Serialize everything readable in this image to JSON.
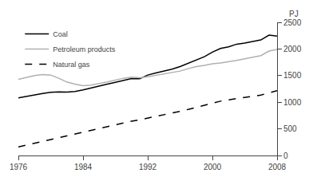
{
  "chart_data": {
    "type": "line",
    "ylabel": "PJ",
    "x": [
      1976,
      1977,
      1978,
      1979,
      1980,
      1981,
      1982,
      1983,
      1984,
      1985,
      1986,
      1987,
      1988,
      1989,
      1990,
      1991,
      1992,
      1993,
      1994,
      1995,
      1996,
      1997,
      1998,
      1999,
      2000,
      2001,
      2002,
      2003,
      2004,
      2005,
      2006,
      2007,
      2008
    ],
    "series": [
      {
        "name": "Coal",
        "color": "#000000",
        "line_style": "solid",
        "values": [
          1080,
          1110,
          1140,
          1165,
          1185,
          1195,
          1190,
          1200,
          1230,
          1270,
          1300,
          1340,
          1375,
          1415,
          1445,
          1440,
          1510,
          1550,
          1580,
          1620,
          1670,
          1730,
          1800,
          1855,
          1940,
          2010,
          2040,
          2090,
          2110,
          2145,
          2170,
          2260,
          2240
        ]
      },
      {
        "name": "Petroleum products",
        "color": "#b0b0b0",
        "line_style": "solid",
        "values": [
          1430,
          1470,
          1500,
          1520,
          1510,
          1450,
          1380,
          1340,
          1310,
          1320,
          1345,
          1380,
          1415,
          1450,
          1470,
          1460,
          1480,
          1505,
          1530,
          1555,
          1585,
          1630,
          1670,
          1690,
          1720,
          1735,
          1755,
          1785,
          1815,
          1845,
          1875,
          1960,
          1990
        ]
      },
      {
        "name": "Natural gas",
        "color": "#000000",
        "line_style": "dashed",
        "values": [
          160,
          195,
          230,
          268,
          305,
          340,
          375,
          410,
          445,
          480,
          515,
          550,
          585,
          615,
          645,
          670,
          700,
          730,
          762,
          795,
          830,
          865,
          905,
          945,
          985,
          1020,
          1045,
          1065,
          1085,
          1108,
          1135,
          1175,
          1215
        ]
      }
    ],
    "xlim": [
      1976,
      2008
    ],
    "ylim": [
      0,
      2500
    ],
    "xticks": [
      1976,
      1984,
      1992,
      2000,
      2008
    ],
    "yticks": [
      0,
      500,
      1000,
      1500,
      2000,
      2500
    ],
    "grid": false,
    "legend": "upper left"
  }
}
